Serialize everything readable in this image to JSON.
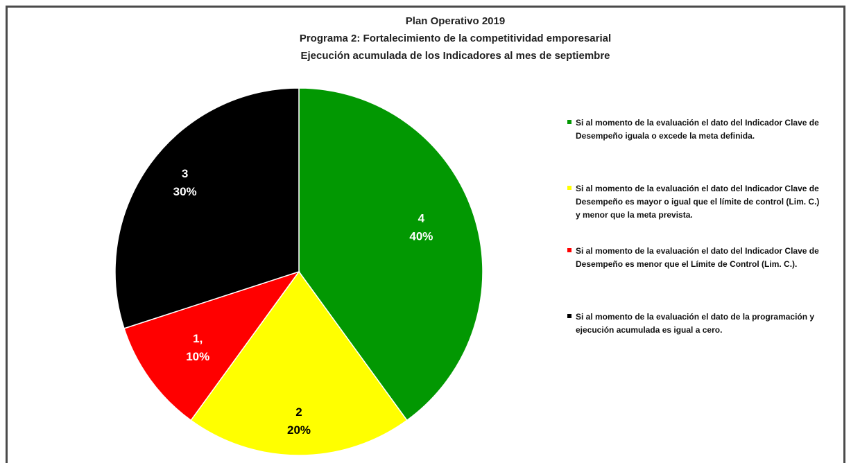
{
  "chart_data": {
    "type": "pie",
    "title": [
      "Plan Operativo 2019",
      "Programa 2: Fortalecimiento de la competitividad emporesarial",
      "Ejecución  acumulada de los Indicadores al mes de septiembre"
    ],
    "slices": [
      {
        "category": "4",
        "value": 4,
        "percent_label": "40%",
        "color": "#029802",
        "label_color": "#ffffff"
      },
      {
        "category": "2",
        "value": 2,
        "percent_label": "20%",
        "color": "#ffff00",
        "label_color": "#000000"
      },
      {
        "category": "1,",
        "value": 1,
        "percent_label": "10%",
        "color": "#ff0000",
        "label_color": "#ffffff"
      },
      {
        "category": "3",
        "value": 3,
        "percent_label": "30%",
        "color": "#000000",
        "label_color": "#ffffff"
      }
    ],
    "legend": [
      {
        "color": "#029802",
        "text": "Si al momento de la evaluación el dato del Indicador Clave de Desempeño iguala o excede la meta definida."
      },
      {
        "color": "#ffff00",
        "text": "Si al momento de la evaluación el dato del Indicador Clave de Desempeño es mayor o igual que el límite de control (Lim. C.) y menor que la meta prevista."
      },
      {
        "color": "#ff0000",
        "text": "Si al momento de la evaluación el dato del Indicador Clave de Desempeño es menor que el Límite de Control (Lim. C.)."
      },
      {
        "color": "#000000",
        "text": "Si al momento de la evaluación el dato de la programación y ejecución acumulada es igual a cero."
      }
    ],
    "legend_position": "right"
  }
}
